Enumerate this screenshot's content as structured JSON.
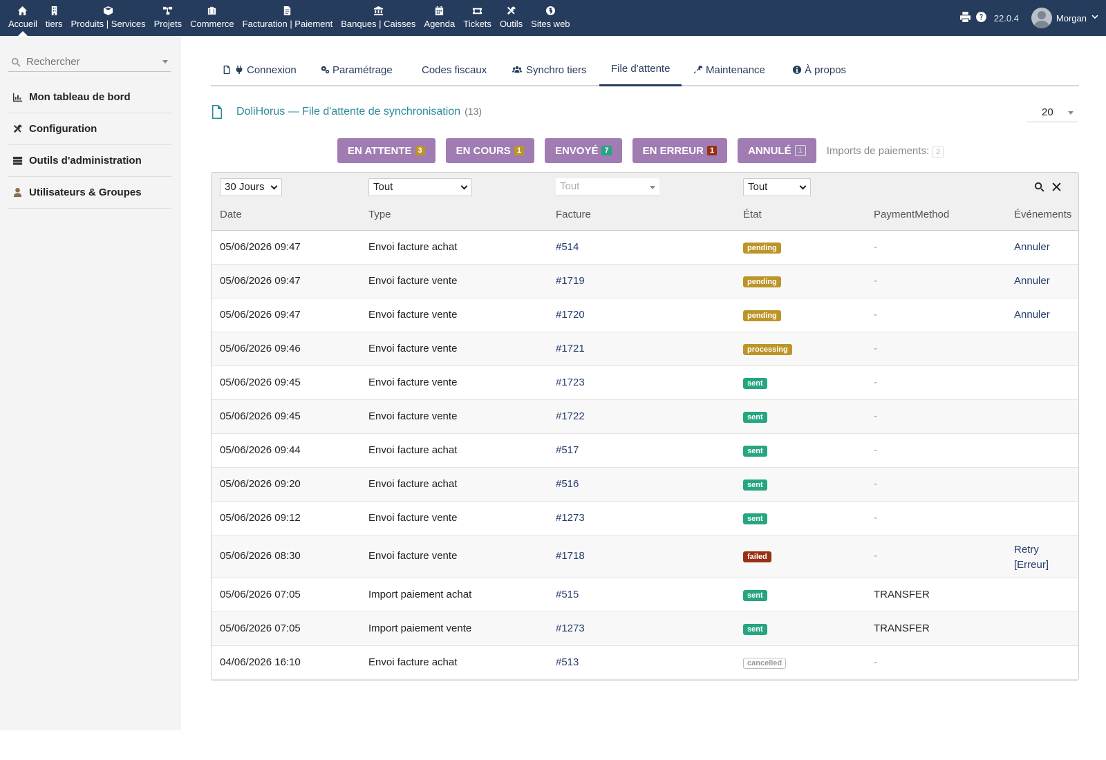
{
  "topnav": {
    "items": [
      {
        "label": "Accueil",
        "icon": "home-icon"
      },
      {
        "label": "tiers",
        "icon": "building-icon"
      },
      {
        "label": "Produits | Services",
        "icon": "cube-icon"
      },
      {
        "label": "Projets",
        "icon": "sitemap-icon"
      },
      {
        "label": "Commerce",
        "icon": "suitcase-icon"
      },
      {
        "label": "Facturation | Paiement",
        "icon": "file-invoice-icon"
      },
      {
        "label": "Banques | Caisses",
        "icon": "bank-icon"
      },
      {
        "label": "Agenda",
        "icon": "calendar-icon"
      },
      {
        "label": "Tickets",
        "icon": "ticket-icon"
      },
      {
        "label": "Outils",
        "icon": "tools-icon"
      },
      {
        "label": "Sites web",
        "icon": "globe-icon"
      }
    ],
    "version": "22.0.4",
    "user": "Morgan"
  },
  "sidebar": {
    "search_placeholder": "Rechercher",
    "items": [
      {
        "label": "Mon tableau de bord",
        "icon": "chart-icon"
      },
      {
        "label": "Configuration",
        "icon": "tools-icon"
      },
      {
        "label": "Outils d'administration",
        "icon": "server-icon"
      },
      {
        "label": "Utilisateurs & Groupes",
        "icon": "user-icon"
      }
    ]
  },
  "tabs": [
    {
      "label": "Connexion"
    },
    {
      "label": "Paramétrage"
    },
    {
      "label": "Codes fiscaux"
    },
    {
      "label": "Synchro tiers"
    },
    {
      "label": "File d'attente"
    },
    {
      "label": "Maintenance"
    },
    {
      "label": "À propos"
    }
  ],
  "active_tab": "File d'attente",
  "page": {
    "title": "DoliHorus — File d'attente de synchronisation",
    "count": "(13)",
    "page_size": "20"
  },
  "status_buttons": [
    {
      "label": "EN ATTENTE",
      "count": "3"
    },
    {
      "label": "EN COURS",
      "count": "1"
    },
    {
      "label": "ENVOYÉ",
      "count": "7"
    },
    {
      "label": "EN ERREUR",
      "count": "1"
    },
    {
      "label": "ANNULÉ",
      "count": "1"
    }
  ],
  "imports": {
    "label": "Imports de paiements:",
    "count": "2"
  },
  "filters": {
    "period": "30 Jours",
    "type": "Tout",
    "invoice": "Tout",
    "state": "Tout"
  },
  "columns": {
    "date": "Date",
    "type": "Type",
    "invoice": "Facture",
    "state": "État",
    "payment": "PaymentMethod",
    "events": "Événements"
  },
  "status_colors": {
    "pending": "#bc9526",
    "processing": "#bc9526",
    "sent": "#25a580",
    "failed": "#993013",
    "cancelled": "#999999"
  },
  "rows": [
    {
      "date": "05/06/2026 09:47",
      "type": "Envoi facture achat",
      "invoice": "#514",
      "state": "pending",
      "payment": "-",
      "action": "Annuler"
    },
    {
      "date": "05/06/2026 09:47",
      "type": "Envoi facture vente",
      "invoice": "#1719",
      "state": "pending",
      "payment": "-",
      "action": "Annuler"
    },
    {
      "date": "05/06/2026 09:47",
      "type": "Envoi facture vente",
      "invoice": "#1720",
      "state": "pending",
      "payment": "-",
      "action": "Annuler"
    },
    {
      "date": "05/06/2026 09:46",
      "type": "Envoi facture vente",
      "invoice": "#1721",
      "state": "processing",
      "payment": "-",
      "action": ""
    },
    {
      "date": "05/06/2026 09:45",
      "type": "Envoi facture vente",
      "invoice": "#1723",
      "state": "sent",
      "payment": "-",
      "action": ""
    },
    {
      "date": "05/06/2026 09:45",
      "type": "Envoi facture vente",
      "invoice": "#1722",
      "state": "sent",
      "payment": "-",
      "action": ""
    },
    {
      "date": "05/06/2026 09:44",
      "type": "Envoi facture achat",
      "invoice": "#517",
      "state": "sent",
      "payment": "-",
      "action": ""
    },
    {
      "date": "05/06/2026 09:20",
      "type": "Envoi facture achat",
      "invoice": "#516",
      "state": "sent",
      "payment": "-",
      "action": ""
    },
    {
      "date": "05/06/2026 09:12",
      "type": "Envoi facture vente",
      "invoice": "#1273",
      "state": "sent",
      "payment": "-",
      "action": ""
    },
    {
      "date": "05/06/2026 08:30",
      "type": "Envoi facture vente",
      "invoice": "#1718",
      "state": "failed",
      "payment": "-",
      "action": "Retry",
      "action2": "[Erreur]"
    },
    {
      "date": "05/06/2026 07:05",
      "type": "Import paiement achat",
      "invoice": "#515",
      "state": "sent",
      "payment": "TRANSFER",
      "action": ""
    },
    {
      "date": "05/06/2026 07:05",
      "type": "Import paiement vente",
      "invoice": "#1273",
      "state": "sent",
      "payment": "TRANSFER",
      "action": ""
    },
    {
      "date": "04/06/2026 16:10",
      "type": "Envoi facture achat",
      "invoice": "#513",
      "state": "cancelled",
      "payment": "-",
      "action": ""
    }
  ]
}
